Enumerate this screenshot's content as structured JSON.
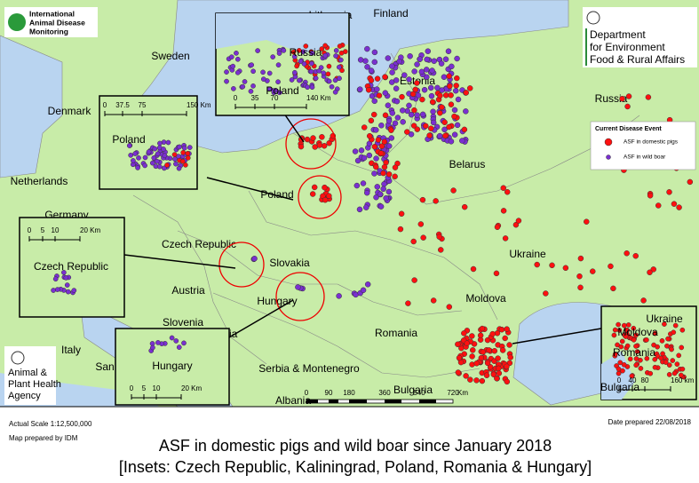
{
  "logos": {
    "idm": [
      "International",
      "Animal Disease",
      "Monitoring"
    ],
    "defra": [
      "Department",
      "for Environment",
      "Food & Rural Affairs"
    ],
    "apha": [
      "Animal &",
      "Plant Health",
      "Agency"
    ]
  },
  "country_labels": [
    "Lithuania",
    "Finland",
    "Sweden",
    "Estonia",
    "Russia",
    "Denmark",
    "Netherlands",
    "Germany",
    "Belarus",
    "Poland",
    "Czech Republic",
    "Slovakia",
    "Austria",
    "Hungary",
    "Slovenia",
    "Croatia",
    "Italy",
    "San Marino",
    "Ukraine",
    "Moldova",
    "Romania",
    "Serbia & Montenegro",
    "Bulgaria",
    "Albania"
  ],
  "legend": {
    "title": "Current Disease Event",
    "items": [
      "ASF in domestic pigs",
      "ASF in wild boar"
    ]
  },
  "insets": [
    {
      "labels": [
        "Russia",
        "Poland"
      ],
      "scale": [
        "0",
        "35",
        "70",
        "140 Km"
      ]
    },
    {
      "labels": [
        "Poland"
      ],
      "scale": [
        "0",
        "37.5",
        "75",
        "150 Km"
      ]
    },
    {
      "labels": [
        "Czech Republic"
      ],
      "scale": [
        "0",
        "5",
        "10",
        "20 Km"
      ]
    },
    {
      "labels": [
        "Hungary"
      ],
      "scale": [
        "0",
        "5",
        "10",
        "20 Km"
      ]
    },
    {
      "labels": [
        "Ukraine",
        "Moldova",
        "Romania",
        "Bulgaria"
      ],
      "scale": [
        "0",
        "40",
        "80",
        "160 km"
      ]
    }
  ],
  "scale_bar": [
    "0",
    "90",
    "180",
    "360",
    "540",
    "720",
    "Km"
  ],
  "footer": {
    "actual_scale": "Actual Scale 1:12,500,000",
    "prepared_by": "Map prepared by IDM",
    "date": "Date prepared 22/08/2018"
  },
  "caption": {
    "title": "ASF in domestic pigs and wild boar since January 2018",
    "subtitle": "[Insets: Czech Republic, Kaliningrad, Poland, Romania & Hungary]"
  }
}
